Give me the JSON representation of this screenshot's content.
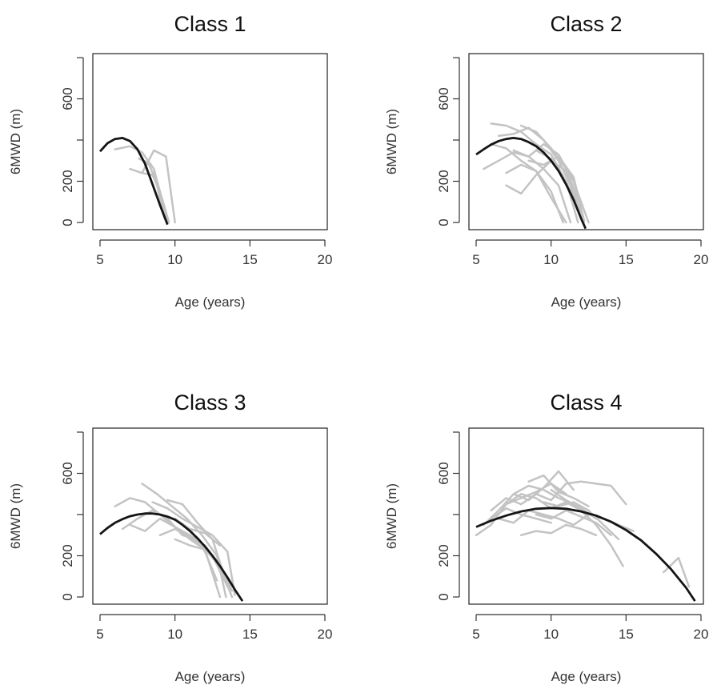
{
  "chart_data": [
    {
      "type": "line",
      "title": "Class 1",
      "xlabel": "Age (years)",
      "ylabel": "6MWD (m)",
      "xlim": [
        5,
        20
      ],
      "ylim": [
        0,
        800
      ],
      "xticks": [
        5,
        10,
        15,
        20
      ],
      "yticks": [
        0,
        200,
        600
      ],
      "individual_color": "#c3c3c3",
      "mean_color": "#151515",
      "mean_curve": {
        "x": [
          5.0,
          5.5,
          6.0,
          6.5,
          7.0,
          7.5,
          8.0,
          8.5,
          9.0,
          9.5
        ],
        "y": [
          345,
          385,
          405,
          410,
          395,
          355,
          285,
          185,
          85,
          -10
        ]
      },
      "individual_series": [
        {
          "x": [
            6.0,
            7.0,
            7.8,
            8.6,
            9.5
          ],
          "y": [
            355,
            370,
            340,
            260,
            0
          ]
        },
        {
          "x": [
            7.0,
            7.8,
            8.6,
            9.4,
            10.0
          ],
          "y": [
            260,
            240,
            350,
            320,
            0
          ]
        },
        {
          "x": [
            7.6,
            8.2,
            8.8,
            9.4
          ],
          "y": [
            310,
            290,
            200,
            50
          ]
        },
        {
          "x": [
            7.8,
            8.5,
            9.0,
            9.6
          ],
          "y": [
            240,
            230,
            150,
            0
          ]
        },
        {
          "x": [
            8.2,
            8.8,
            9.3
          ],
          "y": [
            300,
            180,
            20
          ]
        }
      ]
    },
    {
      "type": "line",
      "title": "Class 2",
      "xlabel": "Age (years)",
      "ylabel": "6MWD (m)",
      "xlim": [
        5,
        20
      ],
      "ylim": [
        0,
        800
      ],
      "xticks": [
        5,
        10,
        15,
        20
      ],
      "yticks": [
        0,
        200,
        600
      ],
      "individual_color": "#c3c3c3",
      "mean_color": "#151515",
      "mean_curve": {
        "x": [
          5.0,
          5.5,
          6.0,
          6.5,
          7.0,
          7.5,
          8.0,
          8.5,
          9.0,
          9.5,
          10.0,
          10.5,
          11.0,
          11.5,
          12.0,
          12.3
        ],
        "y": [
          330,
          355,
          378,
          395,
          405,
          410,
          405,
          390,
          370,
          340,
          300,
          250,
          185,
          110,
          20,
          -30
        ]
      },
      "individual_series": [
        {
          "x": [
            6.0,
            7.0,
            8.0,
            9.0,
            10.0,
            11.0,
            11.8
          ],
          "y": [
            480,
            470,
            440,
            380,
            330,
            200,
            0
          ]
        },
        {
          "x": [
            5.5,
            6.5,
            7.5,
            8.5,
            9.5,
            10.5,
            11.3
          ],
          "y": [
            260,
            300,
            340,
            320,
            260,
            180,
            0
          ]
        },
        {
          "x": [
            6.5,
            7.5,
            8.5,
            9.5,
            10.5,
            11.5,
            12.2
          ],
          "y": [
            420,
            430,
            460,
            400,
            300,
            150,
            0
          ]
        },
        {
          "x": [
            7.0,
            8.0,
            9.0,
            10.0,
            11.0,
            12.0
          ],
          "y": [
            180,
            140,
            230,
            300,
            250,
            20
          ]
        },
        {
          "x": [
            7.5,
            8.5,
            9.5,
            10.5,
            11.5,
            12.5
          ],
          "y": [
            350,
            320,
            380,
            330,
            200,
            0
          ]
        },
        {
          "x": [
            6.0,
            7.0,
            8.0,
            9.0,
            10.0,
            11.0
          ],
          "y": [
            380,
            360,
            300,
            250,
            120,
            0
          ]
        },
        {
          "x": [
            8.0,
            9.0,
            10.0,
            11.0,
            12.0
          ],
          "y": [
            470,
            440,
            360,
            260,
            80
          ]
        },
        {
          "x": [
            8.5,
            9.5,
            10.5,
            11.5,
            12.2
          ],
          "y": [
            300,
            280,
            320,
            220,
            10
          ]
        },
        {
          "x": [
            9.0,
            10.0,
            11.0,
            12.0
          ],
          "y": [
            350,
            310,
            200,
            40
          ]
        },
        {
          "x": [
            7.0,
            8.0,
            9.0,
            10.0,
            10.8
          ],
          "y": [
            240,
            280,
            250,
            150,
            0
          ]
        }
      ]
    },
    {
      "type": "line",
      "title": "Class 3",
      "xlabel": "Age (years)",
      "ylabel": "6MWD (m)",
      "xlim": [
        5,
        20
      ],
      "ylim": [
        0,
        800
      ],
      "xticks": [
        5,
        10,
        15,
        20
      ],
      "yticks": [
        0,
        200,
        600
      ],
      "individual_color": "#c3c3c3",
      "mean_color": "#151515",
      "mean_curve": {
        "x": [
          5.0,
          5.5,
          6.0,
          6.5,
          7.0,
          7.5,
          8.0,
          8.5,
          9.0,
          9.5,
          10.0,
          10.5,
          11.0,
          11.5,
          12.0,
          12.5,
          13.0,
          13.5,
          14.0,
          14.5
        ],
        "y": [
          305,
          335,
          360,
          378,
          392,
          400,
          405,
          405,
          400,
          390,
          375,
          350,
          320,
          285,
          245,
          200,
          150,
          95,
          35,
          -20
        ]
      },
      "individual_series": [
        {
          "x": [
            6.0,
            7.0,
            8.0,
            9.0,
            10.0,
            11.0,
            12.0,
            13.0,
            13.8
          ],
          "y": [
            440,
            480,
            460,
            400,
            340,
            300,
            250,
            150,
            0
          ]
        },
        {
          "x": [
            6.5,
            7.5,
            8.5,
            9.5,
            10.5,
            11.5,
            12.5,
            13.5
          ],
          "y": [
            330,
            380,
            420,
            380,
            300,
            280,
            200,
            50
          ]
        },
        {
          "x": [
            7.8,
            8.8,
            9.8,
            10.8,
            11.8,
            12.8,
            13.4
          ],
          "y": [
            550,
            500,
            440,
            380,
            300,
            200,
            0
          ]
        },
        {
          "x": [
            8.5,
            9.5,
            10.5,
            11.5,
            12.5,
            13.5,
            14.0
          ],
          "y": [
            460,
            430,
            380,
            340,
            300,
            220,
            10
          ]
        },
        {
          "x": [
            7.0,
            8.0,
            9.0,
            10.0,
            11.0,
            12.0,
            13.0
          ],
          "y": [
            350,
            320,
            380,
            340,
            280,
            230,
            0
          ]
        },
        {
          "x": [
            9.0,
            10.0,
            11.0,
            12.0,
            13.0,
            13.8
          ],
          "y": [
            300,
            330,
            290,
            240,
            160,
            30
          ]
        },
        {
          "x": [
            10.0,
            11.0,
            12.0,
            13.0,
            13.6
          ],
          "y": [
            280,
            250,
            230,
            150,
            40
          ]
        },
        {
          "x": [
            9.5,
            10.5,
            11.5,
            12.5,
            13.3
          ],
          "y": [
            470,
            450,
            360,
            280,
            100
          ]
        },
        {
          "x": [
            10.0,
            11.0,
            12.0,
            13.0
          ],
          "y": [
            380,
            330,
            310,
            250
          ]
        },
        {
          "x": [
            11.0,
            12.0,
            12.8
          ],
          "y": [
            330,
            220,
            80
          ]
        }
      ]
    },
    {
      "type": "line",
      "title": "Class 4",
      "xlabel": "Age (years)",
      "ylabel": "6MWD (m)",
      "xlim": [
        5,
        20
      ],
      "ylim": [
        0,
        800
      ],
      "xticks": [
        5,
        10,
        15,
        20
      ],
      "yticks": [
        0,
        200,
        600
      ],
      "individual_color": "#c3c3c3",
      "mean_color": "#151515",
      "mean_curve": {
        "x": [
          5.0,
          6.0,
          7.0,
          8.0,
          9.0,
          10.0,
          11.0,
          12.0,
          13.0,
          14.0,
          15.0,
          16.0,
          17.0,
          18.0,
          19.0,
          19.6
        ],
        "y": [
          340,
          370,
          395,
          415,
          428,
          432,
          428,
          415,
          395,
          365,
          325,
          275,
          210,
          135,
          45,
          -20
        ]
      },
      "individual_series": [
        {
          "x": [
            5.0,
            6.0,
            7.0,
            8.0,
            9.0,
            10.0,
            11.0
          ],
          "y": [
            300,
            350,
            450,
            480,
            510,
            550,
            500
          ]
        },
        {
          "x": [
            5.5,
            6.5,
            7.5,
            8.5,
            9.5,
            10.5,
            11.5
          ],
          "y": [
            350,
            420,
            500,
            470,
            530,
            610,
            520
          ]
        },
        {
          "x": [
            6.0,
            7.0,
            8.0,
            9.0,
            10.0,
            11.0,
            12.0,
            13.0,
            14.0,
            15.0
          ],
          "y": [
            420,
            480,
            450,
            500,
            470,
            550,
            560,
            550,
            540,
            450
          ]
        },
        {
          "x": [
            6.5,
            7.5,
            8.5,
            9.5,
            10.5,
            11.5,
            12.5,
            13.5
          ],
          "y": [
            380,
            360,
            420,
            400,
            380,
            350,
            400,
            380
          ]
        },
        {
          "x": [
            7.0,
            8.0,
            9.0,
            10.0,
            11.0,
            12.0,
            13.0,
            14.0,
            14.8
          ],
          "y": [
            450,
            500,
            480,
            430,
            460,
            420,
            350,
            250,
            150
          ]
        },
        {
          "x": [
            7.5,
            8.5,
            9.5,
            10.5,
            11.5,
            12.5,
            13.5,
            14.5,
            15.5
          ],
          "y": [
            500,
            540,
            520,
            480,
            450,
            400,
            380,
            350,
            320
          ]
        },
        {
          "x": [
            8.0,
            9.0,
            10.0,
            11.0,
            12.0,
            13.0
          ],
          "y": [
            300,
            320,
            310,
            350,
            330,
            300
          ]
        },
        {
          "x": [
            8.5,
            9.5,
            10.5,
            11.5,
            12.5
          ],
          "y": [
            560,
            590,
            510,
            480,
            440
          ]
        },
        {
          "x": [
            9.0,
            10.0,
            11.0,
            12.0,
            13.0,
            14.0
          ],
          "y": [
            400,
            380,
            420,
            390,
            360,
            300
          ]
        },
        {
          "x": [
            6.0,
            7.0,
            8.0,
            9.0,
            10.0
          ],
          "y": [
            380,
            430,
            400,
            380,
            360
          ]
        },
        {
          "x": [
            9.5,
            10.5,
            11.5,
            12.5,
            13.5,
            14.5
          ],
          "y": [
            460,
            440,
            460,
            420,
            350,
            280
          ]
        },
        {
          "x": [
            10.0,
            11.0,
            12.0,
            13.0
          ],
          "y": [
            520,
            470,
            430,
            380
          ]
        },
        {
          "x": [
            17.5,
            18.5,
            19.2
          ],
          "y": [
            120,
            190,
            50
          ]
        }
      ]
    }
  ]
}
